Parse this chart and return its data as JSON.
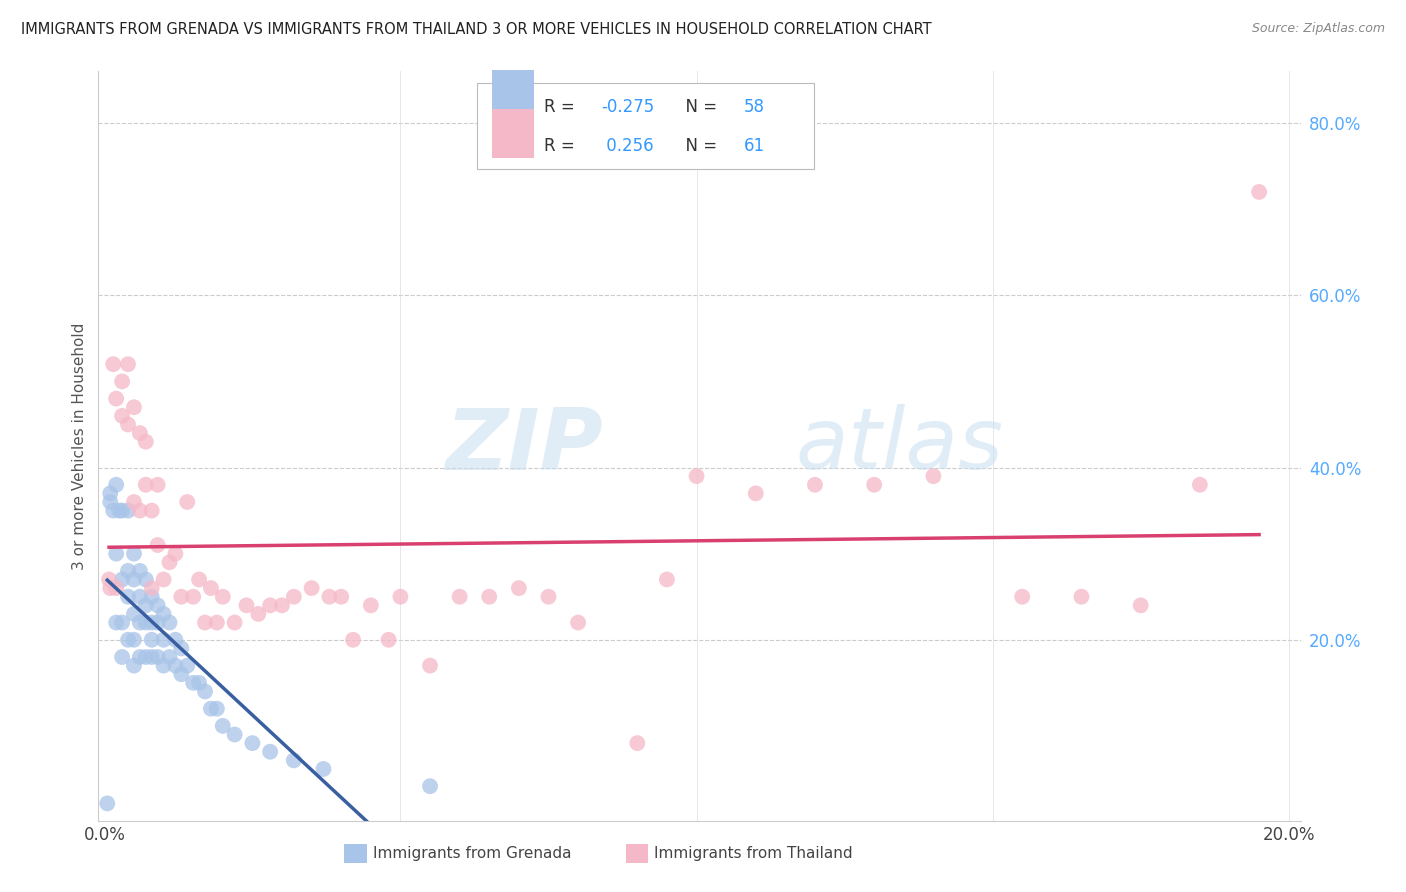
{
  "title": "IMMIGRANTS FROM GRENADA VS IMMIGRANTS FROM THAILAND 3 OR MORE VEHICLES IN HOUSEHOLD CORRELATION CHART",
  "source": "Source: ZipAtlas.com",
  "ylabel": "3 or more Vehicles in Household",
  "legend_grenada": "Immigrants from Grenada",
  "legend_thailand": "Immigrants from Thailand",
  "R_grenada": -0.275,
  "N_grenada": 58,
  "R_thailand": 0.256,
  "N_thailand": 61,
  "color_grenada": "#a8c4e8",
  "color_thailand": "#f5b8c8",
  "trendline_grenada": "#3a5fa0",
  "trendline_thailand": "#d94070",
  "watermark_zip": "ZIP",
  "watermark_atlas": "atlas",
  "xlim": [
    -0.001,
    0.202
  ],
  "ylim": [
    -0.01,
    0.86
  ],
  "right_yticks": [
    0.2,
    0.4,
    0.6,
    0.8
  ],
  "right_yticklabels": [
    "20.0%",
    "40.0%",
    "60.0%",
    "80.0%"
  ],
  "xtick_positions": [
    0.0,
    0.05,
    0.1,
    0.15,
    0.2
  ],
  "xtick_labels": [
    "0.0%",
    "",
    "",
    "",
    "20.0%"
  ],
  "grenada_x": [
    0.0005,
    0.001,
    0.001,
    0.0015,
    0.002,
    0.002,
    0.002,
    0.0025,
    0.003,
    0.003,
    0.003,
    0.003,
    0.004,
    0.004,
    0.004,
    0.004,
    0.005,
    0.005,
    0.005,
    0.005,
    0.005,
    0.006,
    0.006,
    0.006,
    0.006,
    0.007,
    0.007,
    0.007,
    0.007,
    0.008,
    0.008,
    0.008,
    0.008,
    0.009,
    0.009,
    0.009,
    0.01,
    0.01,
    0.01,
    0.011,
    0.011,
    0.012,
    0.012,
    0.013,
    0.013,
    0.014,
    0.015,
    0.016,
    0.017,
    0.018,
    0.019,
    0.02,
    0.022,
    0.025,
    0.028,
    0.032,
    0.037,
    0.055
  ],
  "grenada_y": [
    0.01,
    0.37,
    0.36,
    0.35,
    0.38,
    0.3,
    0.22,
    0.35,
    0.35,
    0.27,
    0.22,
    0.18,
    0.35,
    0.28,
    0.25,
    0.2,
    0.3,
    0.27,
    0.23,
    0.2,
    0.17,
    0.28,
    0.25,
    0.22,
    0.18,
    0.27,
    0.24,
    0.22,
    0.18,
    0.25,
    0.22,
    0.2,
    0.18,
    0.24,
    0.22,
    0.18,
    0.23,
    0.2,
    0.17,
    0.22,
    0.18,
    0.2,
    0.17,
    0.19,
    0.16,
    0.17,
    0.15,
    0.15,
    0.14,
    0.12,
    0.12,
    0.1,
    0.09,
    0.08,
    0.07,
    0.06,
    0.05,
    0.03
  ],
  "thailand_x": [
    0.0008,
    0.001,
    0.0015,
    0.002,
    0.002,
    0.003,
    0.003,
    0.004,
    0.004,
    0.005,
    0.005,
    0.006,
    0.006,
    0.007,
    0.007,
    0.008,
    0.008,
    0.009,
    0.009,
    0.01,
    0.011,
    0.012,
    0.013,
    0.014,
    0.015,
    0.016,
    0.017,
    0.018,
    0.019,
    0.02,
    0.022,
    0.024,
    0.026,
    0.028,
    0.03,
    0.032,
    0.035,
    0.038,
    0.04,
    0.042,
    0.045,
    0.048,
    0.05,
    0.055,
    0.06,
    0.065,
    0.07,
    0.075,
    0.08,
    0.09,
    0.095,
    0.1,
    0.11,
    0.12,
    0.13,
    0.14,
    0.155,
    0.165,
    0.175,
    0.185,
    0.195
  ],
  "thailand_y": [
    0.27,
    0.26,
    0.52,
    0.48,
    0.26,
    0.5,
    0.46,
    0.52,
    0.45,
    0.47,
    0.36,
    0.44,
    0.35,
    0.43,
    0.38,
    0.26,
    0.35,
    0.31,
    0.38,
    0.27,
    0.29,
    0.3,
    0.25,
    0.36,
    0.25,
    0.27,
    0.22,
    0.26,
    0.22,
    0.25,
    0.22,
    0.24,
    0.23,
    0.24,
    0.24,
    0.25,
    0.26,
    0.25,
    0.25,
    0.2,
    0.24,
    0.2,
    0.25,
    0.17,
    0.25,
    0.25,
    0.26,
    0.25,
    0.22,
    0.08,
    0.27,
    0.39,
    0.37,
    0.38,
    0.38,
    0.39,
    0.25,
    0.25,
    0.24,
    0.38,
    0.72
  ]
}
